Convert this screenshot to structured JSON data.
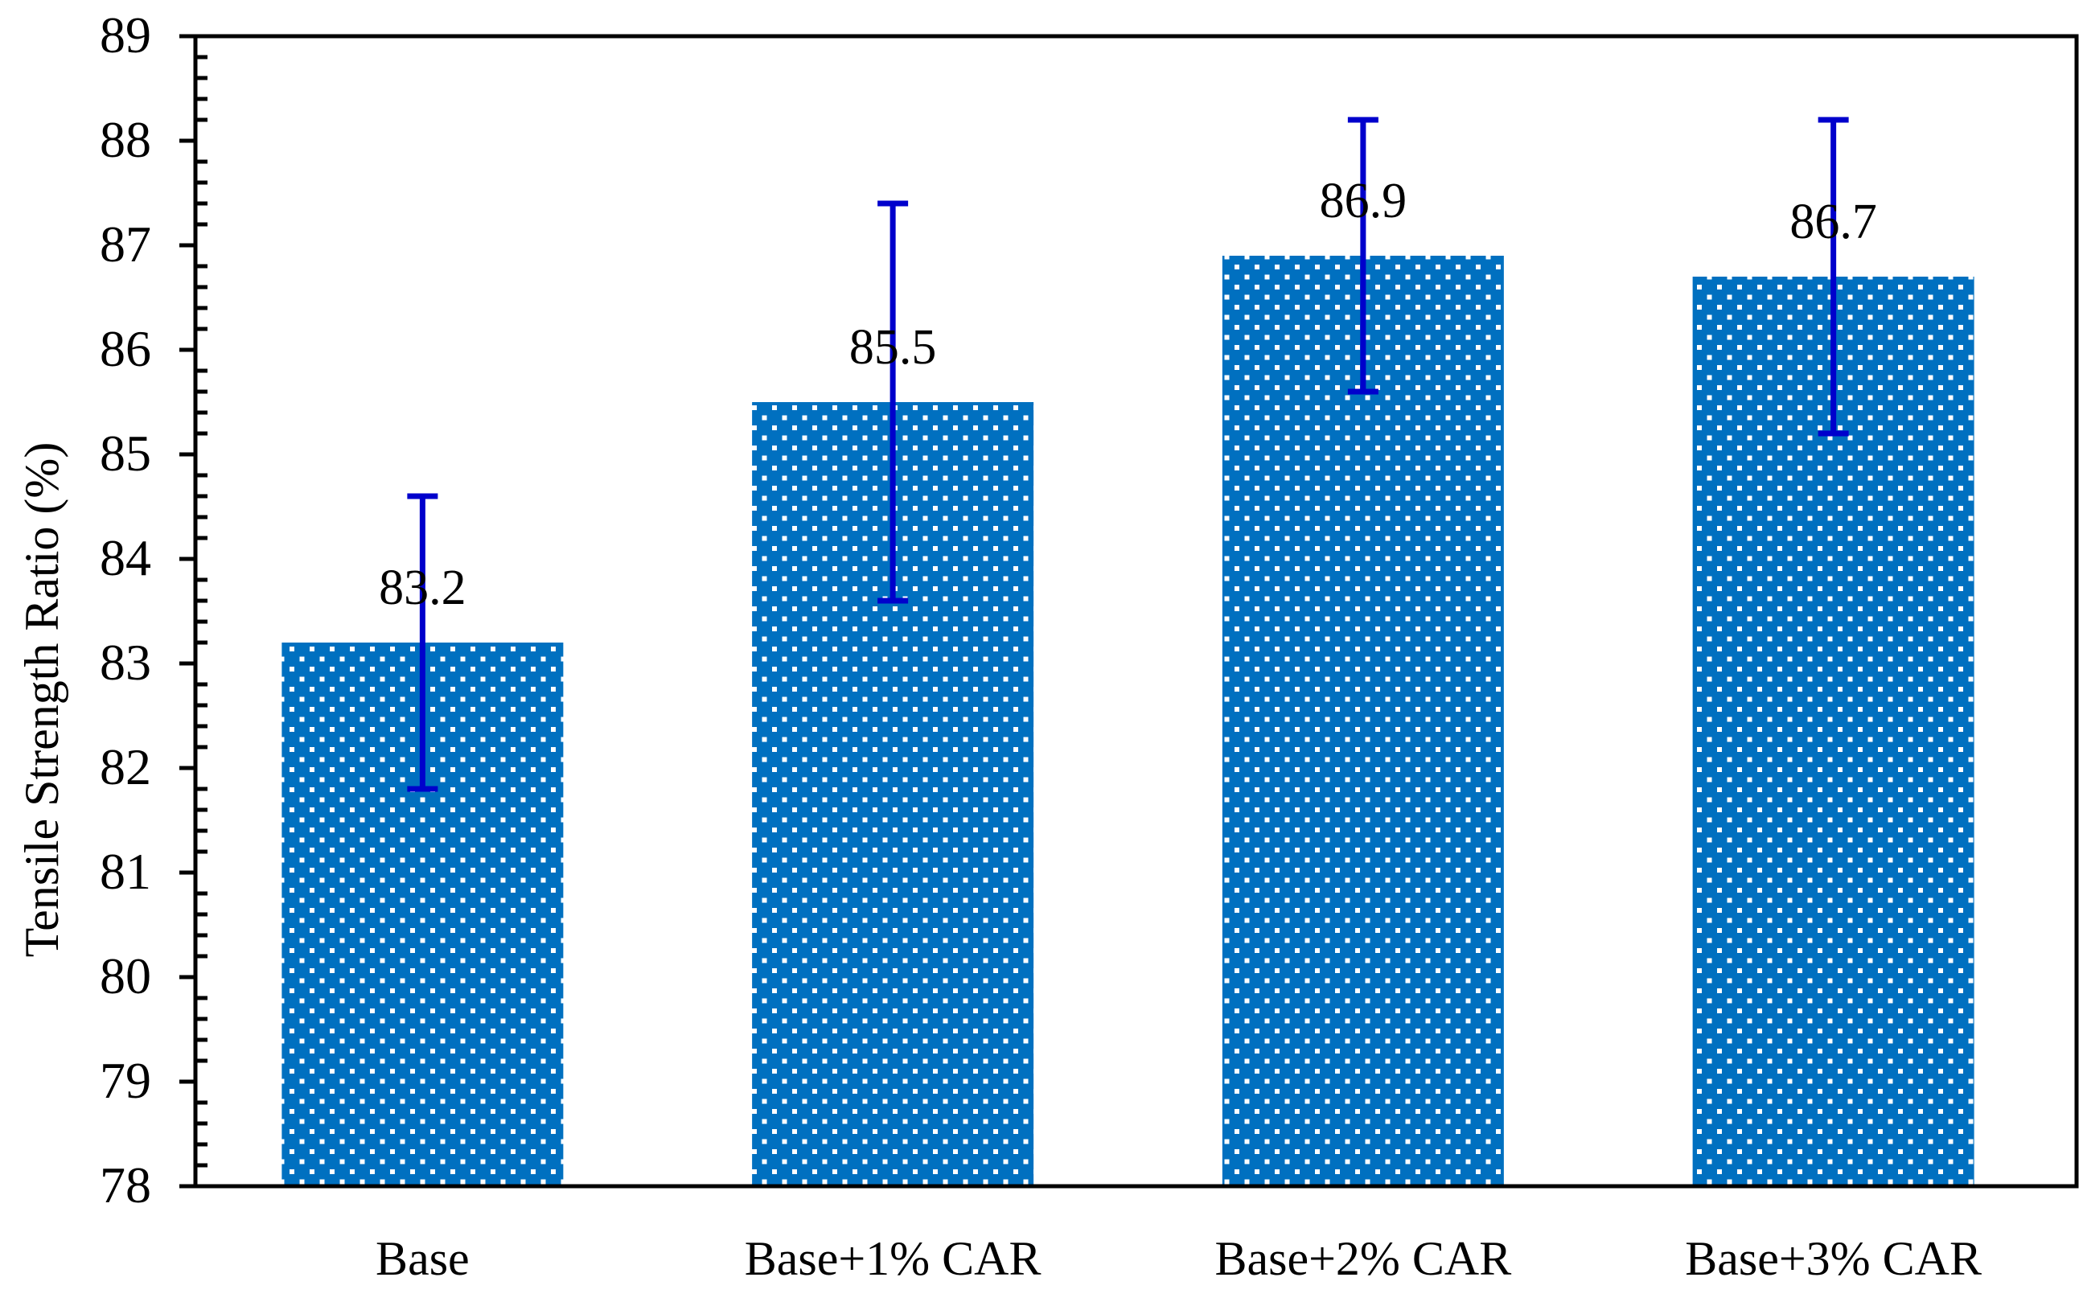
{
  "chart_data": {
    "type": "bar",
    "title": "",
    "xlabel": "",
    "ylabel": "Tensile Strength Ratio (%)",
    "ylim": [
      78,
      89
    ],
    "yticks": [
      78,
      79,
      80,
      81,
      82,
      83,
      84,
      85,
      86,
      87,
      88,
      89
    ],
    "minor_ticks_per_major": 5,
    "grid": false,
    "legend": "none",
    "categories": [
      "Base",
      "Base+1% CAR",
      "Base+2% CAR",
      "Base+3% CAR"
    ],
    "values": [
      83.2,
      85.5,
      86.9,
      86.7
    ],
    "data_labels": [
      "83.2",
      "85.5",
      "86.9",
      "86.7"
    ],
    "error_bars": [
      {
        "low": 81.8,
        "high": 84.6
      },
      {
        "low": 83.6,
        "high": 87.4
      },
      {
        "low": 85.6,
        "high": 88.2
      },
      {
        "low": 85.2,
        "high": 88.2
      }
    ],
    "colors": {
      "bar": "#0070C0",
      "pattern_dots": "#FFFFFF",
      "error_bar": "#0000CC",
      "axis": "#000000"
    }
  }
}
